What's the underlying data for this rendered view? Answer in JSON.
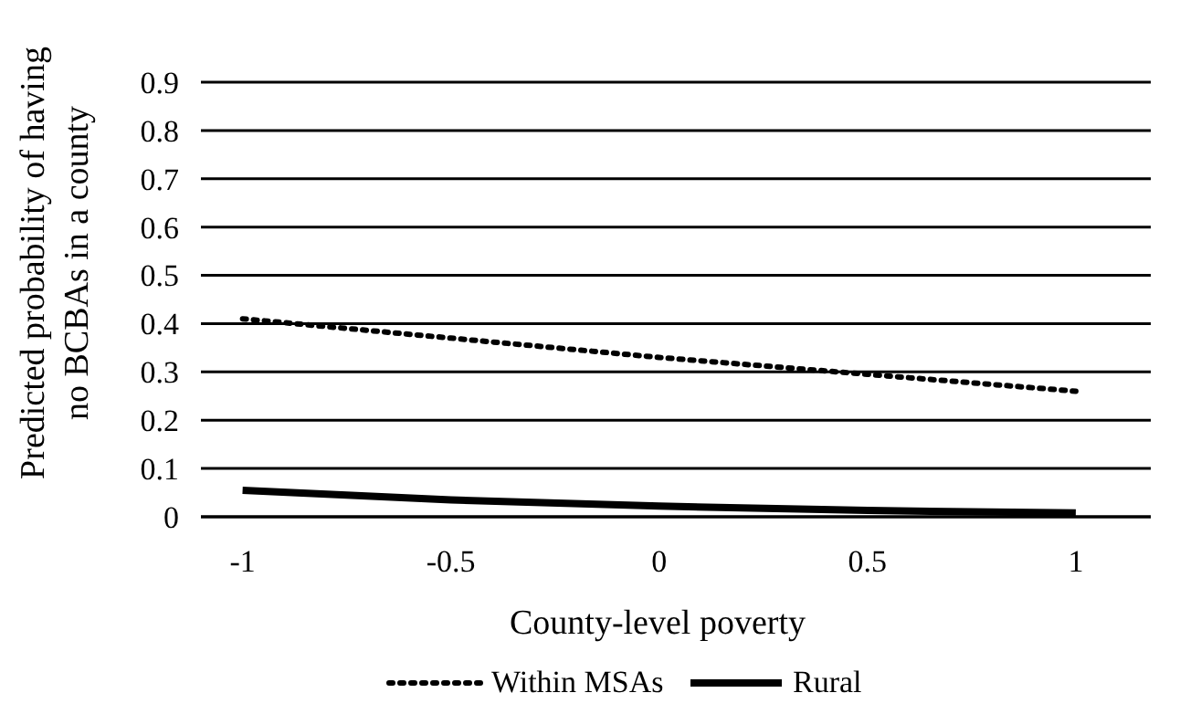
{
  "chart_data": {
    "type": "line",
    "xlabel": "County-level poverty",
    "ylabel": "Predicted probability of having no BCBAs in a county",
    "x": [
      -1,
      -0.5,
      0,
      0.5,
      1
    ],
    "xlim": [
      -1.1,
      1.18
    ],
    "xticks": [
      -1,
      -0.5,
      0,
      0.5,
      1
    ],
    "ylim": [
      0,
      0.9
    ],
    "yticks": [
      0,
      0.1,
      0.2,
      0.3,
      0.4,
      0.5,
      0.6,
      0.7,
      0.8,
      0.9
    ],
    "grid": "y",
    "legend": "bottom",
    "marker": "none",
    "series": [
      {
        "name": "Within MSAs",
        "color": "#000000",
        "line_style": "dotted",
        "values": [
          0.41,
          0.37,
          0.33,
          0.295,
          0.26
        ]
      },
      {
        "name": "Rural",
        "color": "#000000",
        "line_style": "solid",
        "values": [
          0.055,
          0.035,
          0.022,
          0.013,
          0.008
        ]
      }
    ]
  }
}
